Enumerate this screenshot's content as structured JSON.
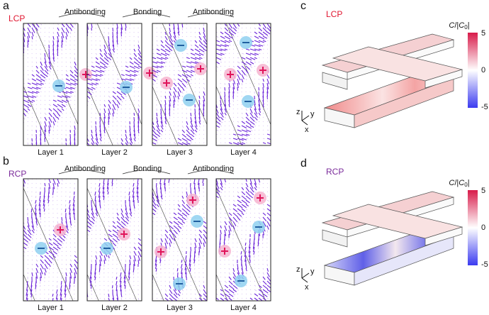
{
  "panels": [
    {
      "letter": "a",
      "polarization": "LCP",
      "transitions": [
        "Antibonding",
        "Bonding",
        "Antibonding"
      ],
      "layers": [
        "Layer 1",
        "Layer 2",
        "Layer 3",
        "Layer 4"
      ]
    },
    {
      "letter": "b",
      "polarization": "RCP",
      "transitions": [
        "Antibonding",
        "Bonding",
        "Antibonding"
      ],
      "layers": [
        "Layer 1",
        "Layer 2",
        "Layer 3",
        "Layer 4"
      ]
    }
  ],
  "maps": [
    {
      "letter": "c",
      "polarization": "LCP",
      "colorbar_label": [
        "C",
        "/|",
        "C",
        "0",
        "|"
      ],
      "colorbar_ticks": [
        "5",
        "0",
        "-5"
      ],
      "axes": [
        "z",
        "y",
        "x"
      ]
    },
    {
      "letter": "d",
      "polarization": "RCP",
      "colorbar_label": [
        "C",
        "/|",
        "C",
        "0",
        "|"
      ],
      "colorbar_ticks": [
        "5",
        "0",
        "-5"
      ],
      "axes": [
        "z",
        "y",
        "x"
      ]
    }
  ]
}
